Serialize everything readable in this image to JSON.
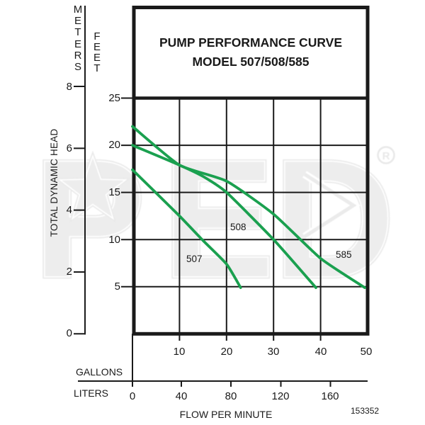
{
  "title": {
    "line1": "PUMP PERFORMANCE CURVE",
    "line2": "MODEL 507/508/585"
  },
  "axes": {
    "meters": {
      "label": "METERS",
      "ticks": [
        "8",
        "6",
        "4",
        "2",
        "0"
      ]
    },
    "feet": {
      "label": "FEET",
      "ticks": [
        "25",
        "20",
        "15",
        "10",
        "5"
      ]
    },
    "gallons": {
      "label": "GALLONS",
      "ticks": [
        "10",
        "20",
        "30",
        "40",
        "50"
      ]
    },
    "liters": {
      "label": "LITERS",
      "ticks": [
        "0",
        "40",
        "80",
        "120",
        "160"
      ]
    },
    "y_title": "TOTAL DYNAMIC HEAD",
    "x_title": "FLOW PER MINUTE"
  },
  "footnote": "153352",
  "watermark": {
    "p": "P",
    "e": "E",
    "d": "D",
    "registered": "R"
  },
  "colors": {
    "curve": "#1aa04f",
    "line": "#1a1a1a"
  },
  "chart_data": {
    "type": "line",
    "title": "PUMP PERFORMANCE CURVE MODEL 507/508/585",
    "xlabel": "FLOW PER MINUTE",
    "ylabel": "TOTAL DYNAMIC HEAD",
    "x_axis": {
      "gallons_ticks": [
        10,
        20,
        30,
        40,
        50
      ],
      "liters_ticks": [
        0,
        40,
        80,
        120,
        160
      ],
      "xlim_gallons": [
        0,
        50
      ]
    },
    "y_axis": {
      "feet_ticks": [
        25,
        20,
        15,
        10,
        5
      ],
      "meters_ticks": [
        8,
        6,
        4,
        2,
        0
      ],
      "ylim_feet": [
        0,
        25
      ]
    },
    "grid": true,
    "series": [
      {
        "name": "507",
        "points": [
          [
            0,
            17.4
          ],
          [
            10,
            12.5
          ],
          [
            15,
            9.9
          ],
          [
            20,
            7.4
          ],
          [
            23,
            4.9
          ]
        ]
      },
      {
        "name": "508",
        "points": [
          [
            0,
            20
          ],
          [
            10,
            17.9
          ],
          [
            15,
            16.7
          ],
          [
            20,
            15
          ],
          [
            30,
            10
          ],
          [
            39,
            4.9
          ]
        ]
      },
      {
        "name": "585",
        "points": [
          [
            0,
            22
          ],
          [
            10,
            17.9
          ],
          [
            20,
            16.2
          ],
          [
            30,
            12.7
          ],
          [
            40,
            8
          ],
          [
            49.4,
            4.9
          ]
        ]
      }
    ]
  }
}
